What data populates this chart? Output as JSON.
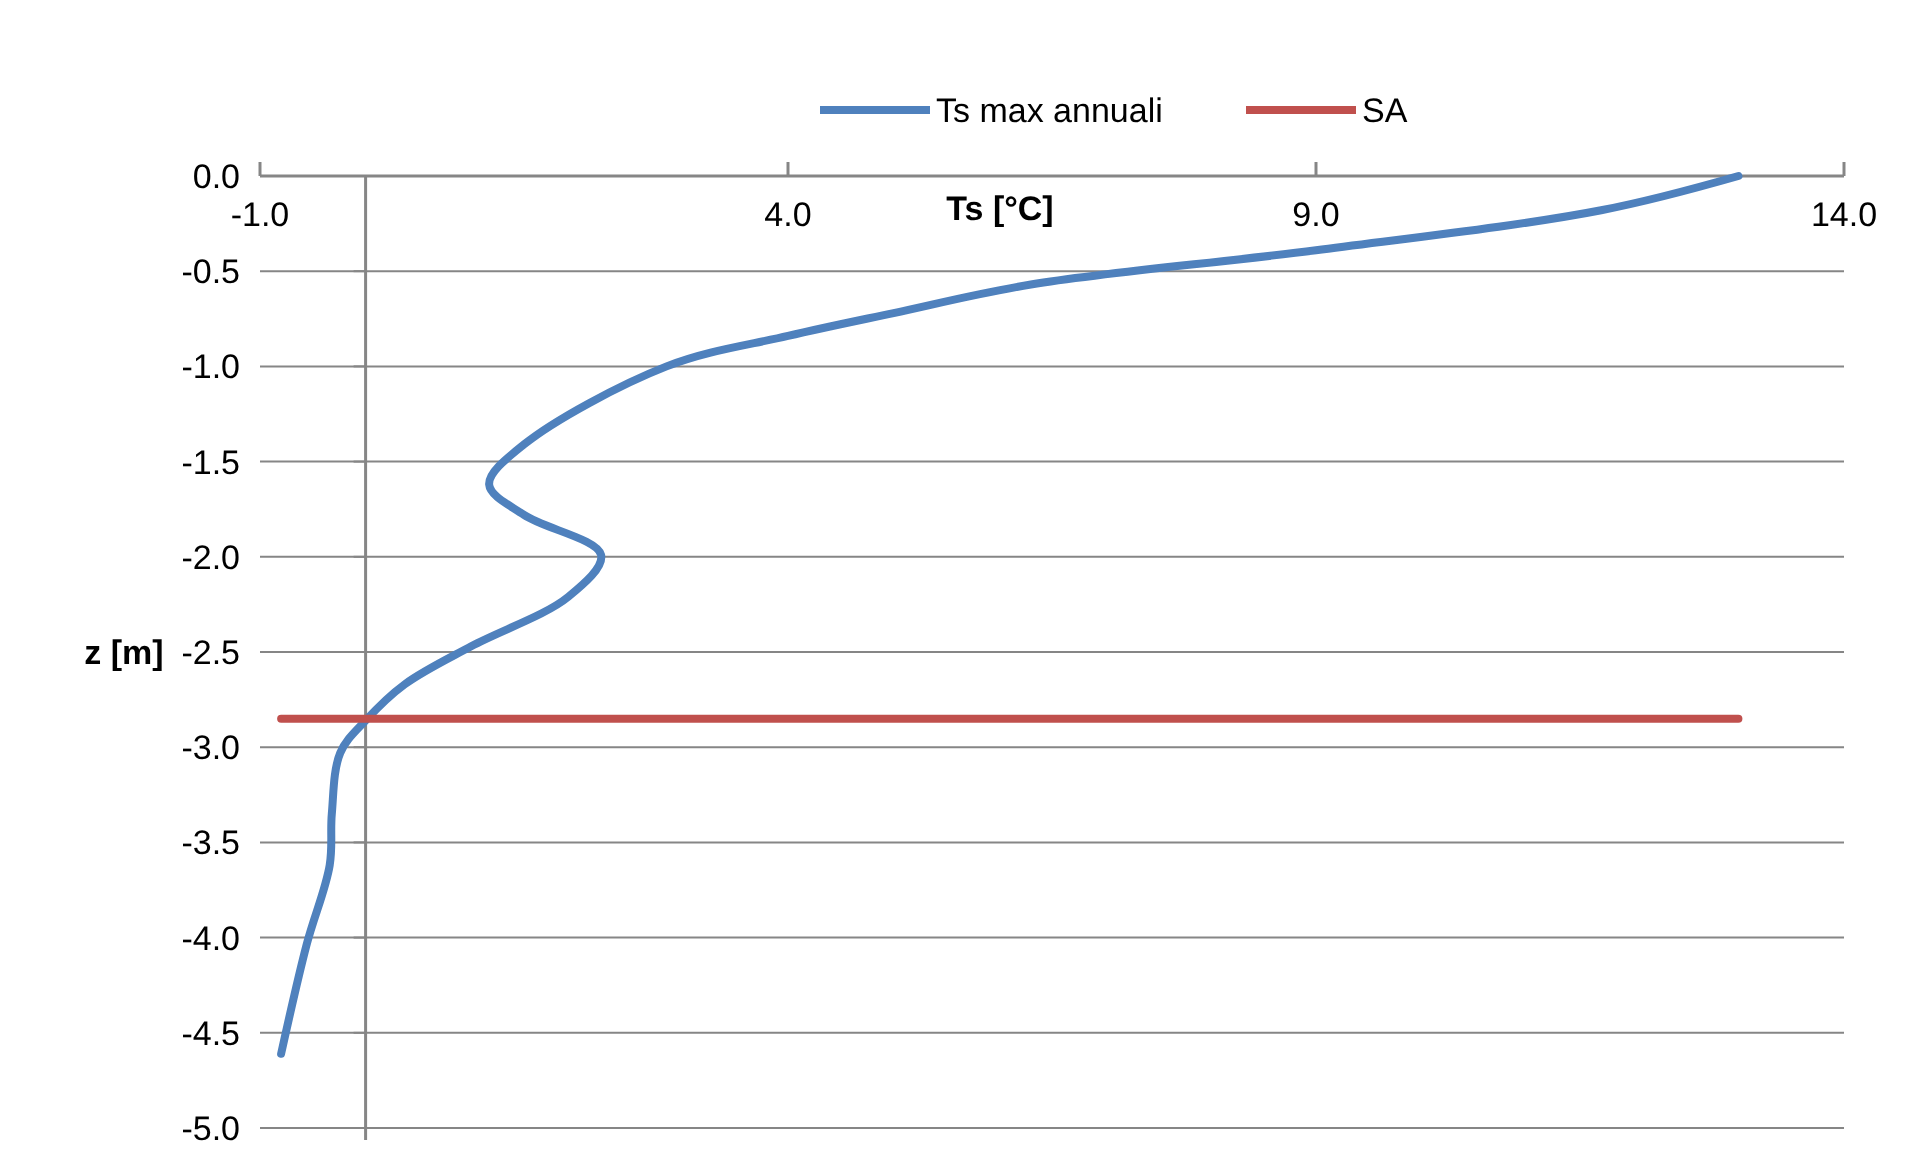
{
  "chart_data": {
    "type": "line",
    "xlabel": "Ts [°C]",
    "ylabel": "z [m]",
    "xlim": [
      -1,
      14
    ],
    "xticks": [
      {
        "value": -1,
        "label": "-1.0"
      },
      {
        "value": 4,
        "label": "4.0"
      },
      {
        "value": 9,
        "label": "9.0"
      },
      {
        "value": 14,
        "label": "14.0"
      }
    ],
    "ylim": [
      -5,
      0
    ],
    "yticks": [
      {
        "value": -5,
        "label": "-5.0"
      },
      {
        "value": -4.5,
        "label": "-4.5"
      },
      {
        "value": -4,
        "label": "-4.0"
      },
      {
        "value": -3.5,
        "label": "-3.5"
      },
      {
        "value": -3,
        "label": "-3.0"
      },
      {
        "value": -2.5,
        "label": "-2.5"
      },
      {
        "value": -2,
        "label": "-2.0"
      },
      {
        "value": -1.5,
        "label": "-1.5"
      },
      {
        "value": -1,
        "label": "-1.0"
      },
      {
        "value": -0.5,
        "label": "-0.5"
      },
      {
        "value": 0,
        "label": "0.0"
      }
    ],
    "grid": "y",
    "legend": "top",
    "marker": "none",
    "line_style": "solid",
    "series": [
      {
        "name": "Ts max annuali",
        "color": "#4f81bd",
        "x": [
          13.0,
          11.7,
          9.0,
          6.3,
          5.0,
          4.0,
          2.85,
          1.5,
          1.17,
          1.5,
          2.23,
          1.92,
          1.0,
          0.37,
          0.0,
          -0.24,
          -0.32,
          -0.34,
          -0.56,
          -0.8
        ],
        "values": [
          0.0,
          -0.18,
          -0.39,
          -0.57,
          -0.72,
          -0.84,
          -1.0,
          -1.41,
          -1.62,
          -1.78,
          -1.99,
          -2.21,
          -2.47,
          -2.67,
          -2.86,
          -3.03,
          -3.35,
          -3.62,
          -4.04,
          -4.61
        ]
      },
      {
        "name": "SA",
        "color": "#c0504d",
        "x": [
          -0.8,
          13.0
        ],
        "values": [
          -2.85,
          -2.85
        ]
      }
    ]
  }
}
